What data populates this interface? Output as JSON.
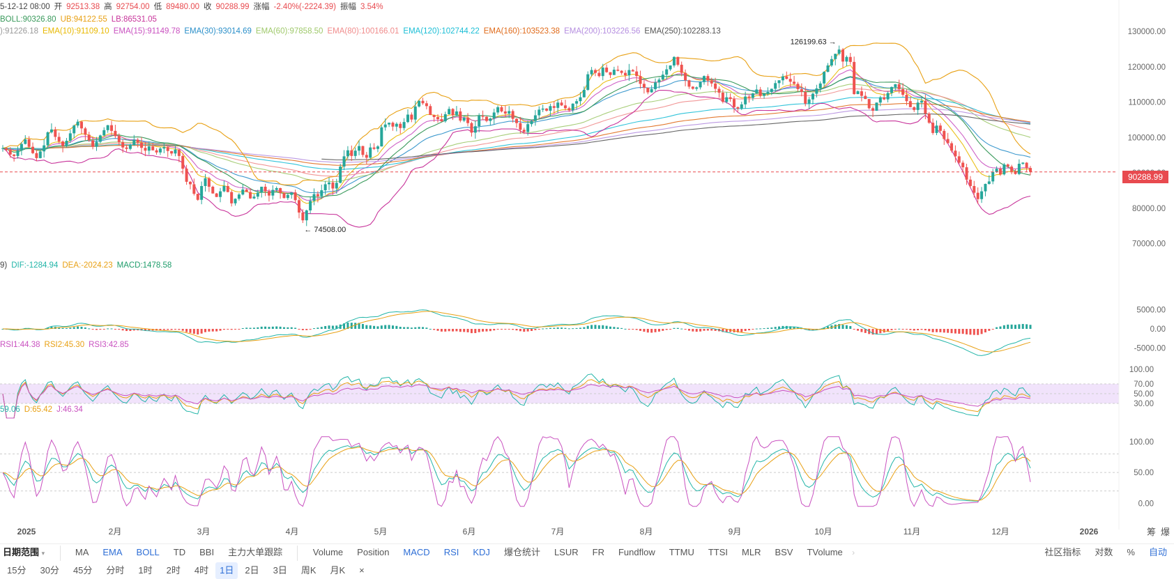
{
  "header": {
    "line1": [
      {
        "text": "5-12-12 08:00",
        "color": "#444"
      },
      {
        "text": "开",
        "color": "#444"
      },
      {
        "text": "92513.38",
        "color": "#e84a4f"
      },
      {
        "text": "高",
        "color": "#444"
      },
      {
        "text": "92754.00",
        "color": "#e84a4f"
      },
      {
        "text": "低",
        "color": "#444"
      },
      {
        "text": "89480.00",
        "color": "#e84a4f"
      },
      {
        "text": "收",
        "color": "#444"
      },
      {
        "text": "90288.99",
        "color": "#e84a4f"
      },
      {
        "text": "涨幅",
        "color": "#444"
      },
      {
        "text": "-2.40%(-2224.39)",
        "color": "#e84a4f"
      },
      {
        "text": "振幅",
        "color": "#444"
      },
      {
        "text": "3.54%",
        "color": "#e84a4f"
      }
    ],
    "line2": [
      {
        "text": "BOLL:90326.80",
        "color": "#3a9a5c"
      },
      {
        "text": "UB:94122.55",
        "color": "#e8a013"
      },
      {
        "text": "LB:86531.05",
        "color": "#c8349b"
      }
    ],
    "line3": [
      {
        "text": "):91226.18",
        "color": "#999"
      },
      {
        "text": "EMA(10):91109.10",
        "color": "#e8b800"
      },
      {
        "text": "EMA(15):91149.78",
        "color": "#c951c0"
      },
      {
        "text": "EMA(30):93014.69",
        "color": "#2a8fc9"
      },
      {
        "text": "EMA(60):97858.50",
        "color": "#9fc96b"
      },
      {
        "text": "EMA(80):100166.01",
        "color": "#f08c8c"
      },
      {
        "text": "EMA(120):102744.22",
        "color": "#1bbed6"
      },
      {
        "text": "EMA(160):103523.38",
        "color": "#e06b1b"
      },
      {
        "text": "EMA(200):103226.56",
        "color": "#b58ee0"
      },
      {
        "text": "EMA(250):102283.13",
        "color": "#555"
      }
    ],
    "macd_legend": [
      {
        "text": "9)",
        "color": "#444"
      },
      {
        "text": "DIF:-1284.94",
        "color": "#22b5a8"
      },
      {
        "text": "DEA:-2024.23",
        "color": "#e8a013"
      },
      {
        "text": "MACD:1478.58",
        "color": "#1f9d6b"
      }
    ],
    "rsi_legend": [
      {
        "text": "RSI1:44.38",
        "color": "#c951c0"
      },
      {
        "text": "RSI2:45.30",
        "color": "#e8a013"
      },
      {
        "text": "RSI3:42.85",
        "color": "#c951c0"
      }
    ],
    "kdj_legend": [
      {
        "text": "59.06",
        "color": "#22b5a8"
      },
      {
        "text": "D:65.42",
        "color": "#e8a013"
      },
      {
        "text": "J:46.34",
        "color": "#c951c0"
      }
    ]
  },
  "price_tag": "90288.99",
  "annotations": {
    "high_label": "126199.63",
    "low_label": "74508.00"
  },
  "corner_labels": {
    "top_right_a": "筹",
    "top_right_b": "爆"
  },
  "indicator_bar": {
    "range_label": "日期范围",
    "main_indicators": [
      {
        "label": "MA",
        "blue": false
      },
      {
        "label": "EMA",
        "blue": true
      },
      {
        "label": "BOLL",
        "blue": true
      },
      {
        "label": "TD",
        "blue": false
      },
      {
        "label": "BBI",
        "blue": false
      },
      {
        "label": "主力大单跟踪",
        "blue": false
      }
    ],
    "sub_indicators": [
      {
        "label": "Volume",
        "blue": false
      },
      {
        "label": "Position",
        "blue": false
      },
      {
        "label": "MACD",
        "blue": true
      },
      {
        "label": "RSI",
        "blue": true
      },
      {
        "label": "KDJ",
        "blue": true
      },
      {
        "label": "爆仓统计",
        "blue": false
      },
      {
        "label": "LSUR",
        "blue": false
      },
      {
        "label": "FR",
        "blue": false
      },
      {
        "label": "Fundflow",
        "blue": false
      },
      {
        "label": "TTMU",
        "blue": false
      },
      {
        "label": "TTSI",
        "blue": false
      },
      {
        "label": "MLR",
        "blue": false
      },
      {
        "label": "BSV",
        "blue": false
      },
      {
        "label": "TVolume",
        "blue": false
      }
    ],
    "right_tools": [
      {
        "label": "社区指标",
        "blue": false
      },
      {
        "label": "对数",
        "blue": false
      },
      {
        "label": "%",
        "blue": false
      },
      {
        "label": "自动",
        "blue": true
      }
    ]
  },
  "timeframes": [
    {
      "label": "15分",
      "active": false
    },
    {
      "label": "30分",
      "active": false
    },
    {
      "label": "45分",
      "active": false
    },
    {
      "label": "分时",
      "active": false
    },
    {
      "label": "1时",
      "active": false
    },
    {
      "label": "2时",
      "active": false
    },
    {
      "label": "4时",
      "active": false
    },
    {
      "label": "1日",
      "active": true
    },
    {
      "label": "2日",
      "active": false
    },
    {
      "label": "3日",
      "active": false
    },
    {
      "label": "周K",
      "active": false
    },
    {
      "label": "月K",
      "active": false
    },
    {
      "label": "×",
      "active": false
    }
  ],
  "chart_data": {
    "type": "candlestick",
    "x_labels": [
      "2025",
      "2月",
      "3月",
      "4月",
      "5月",
      "6月",
      "7月",
      "8月",
      "9月",
      "10月",
      "11月",
      "12月",
      "2026"
    ],
    "price_axis": {
      "ticks": [
        130000,
        120000,
        110000,
        100000,
        90000,
        80000,
        70000
      ],
      "tick_labels": [
        "130000.00",
        "120000.00",
        "110000.00",
        "100000.00",
        "90000.00",
        "80000.00",
        "70000.00"
      ],
      "ylim": [
        66000,
        133000
      ]
    },
    "current_price": 90288.99,
    "period_high": 126199.63,
    "period_low": 74508.0,
    "closes": [
      97000,
      96500,
      95200,
      94800,
      96400,
      98200,
      99500,
      97400,
      95600,
      94200,
      96100,
      97800,
      101500,
      102300,
      100200,
      98900,
      97600,
      99100,
      101200,
      103400,
      104500,
      102600,
      100800,
      99200,
      97400,
      98800,
      100600,
      102100,
      103500,
      101900,
      100400,
      98700,
      97200,
      96800,
      97900,
      99400,
      98600,
      97100,
      96300,
      97500,
      96400,
      95800,
      96900,
      97300,
      96200,
      95500,
      96600,
      94800,
      91200,
      87500,
      86800,
      84100,
      82400,
      86300,
      88500,
      86100,
      84200,
      83200,
      84800,
      86300,
      84600,
      81400,
      82700,
      83900,
      85300,
      84600,
      82800,
      83300,
      84400,
      86100,
      84800,
      83600,
      85200,
      85700,
      84300,
      82900,
      83800,
      84500,
      82300,
      78800,
      76600,
      79400,
      82100,
      84000,
      83400,
      85100,
      86800,
      87300,
      85600,
      87200,
      91800,
      94700,
      96400,
      94800,
      96300,
      97600,
      95100,
      94300,
      97200,
      96800,
      97500,
      102900,
      103700,
      104200,
      103100,
      103900,
      102700,
      104400,
      106500,
      105100,
      108800,
      110400,
      109700,
      108900,
      106400,
      105800,
      105200,
      104600,
      106600,
      108100,
      106300,
      107400,
      104800,
      105600,
      104100,
      101400,
      103200,
      106200,
      105900,
      104700,
      105400,
      107100,
      108600,
      107400,
      106800,
      107500,
      105300,
      104100,
      102200,
      101600,
      103800,
      104700,
      106300,
      107900,
      108200,
      107600,
      108900,
      108400,
      109900,
      109100,
      108300,
      107700,
      109600,
      110300,
      111400,
      113500,
      117900,
      119100,
      118300,
      117400,
      119800,
      118500,
      117700,
      119200,
      118900,
      118300,
      117600,
      119100,
      118700,
      117400,
      115200,
      114100,
      112800,
      113700,
      115600,
      116400,
      117800,
      119300,
      120400,
      122800,
      120600,
      118300,
      116200,
      114400,
      113800,
      114200,
      115700,
      117400,
      116100,
      115300,
      113800,
      112700,
      110100,
      111400,
      110900,
      108600,
      108200,
      109400,
      111600,
      111200,
      112500,
      113600,
      111800,
      112400,
      112900,
      113800,
      115400,
      116200,
      117300,
      116600,
      115800,
      115200,
      113700,
      112900,
      109600,
      110800,
      112400,
      113900,
      115300,
      118600,
      120400,
      122200,
      123700,
      124900,
      121500,
      122800,
      121400,
      112300,
      113100,
      111800,
      110900,
      108300,
      107600,
      109900,
      111400,
      110800,
      112600,
      114300,
      115100,
      113700,
      112100,
      110300,
      108600,
      107800,
      109900,
      110400,
      106800,
      104200,
      101300,
      103400,
      101900,
      99600,
      98400,
      96300,
      94700,
      92900,
      91600,
      88100,
      86300,
      84400,
      82600,
      84800,
      86900,
      87600,
      90300,
      91200,
      89600,
      92400,
      91800,
      90500,
      89700,
      92600,
      92900,
      91400,
      90288
    ]
  }
}
